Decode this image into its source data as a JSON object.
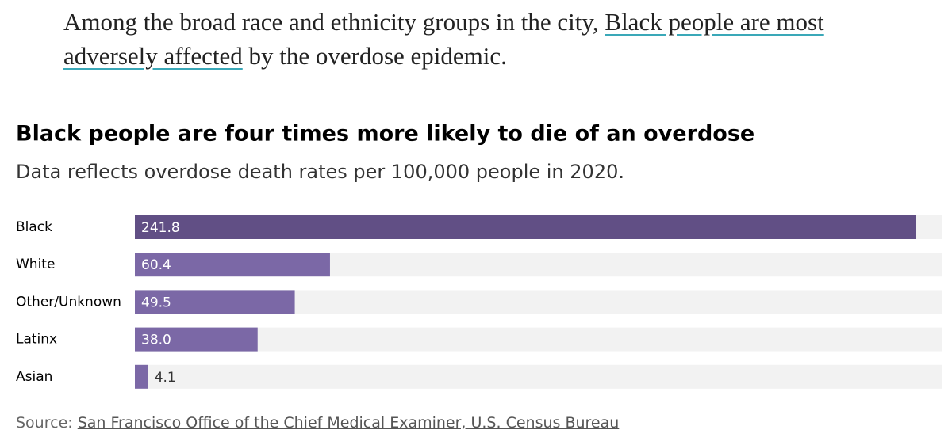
{
  "intro": {
    "before": "Among the broad race and ethnicity groups in the city,",
    "link": "Black people are most adversely affected",
    "after": "by the overdose epidemic."
  },
  "chart_data": {
    "type": "bar",
    "orientation": "horizontal",
    "title": "Black people are four times more likely to die of an overdose",
    "subtitle": "Data reflects overdose death rates per 100,000 people in 2020.",
    "categories": [
      "Black",
      "White",
      "Other/Unknown",
      "Latinx",
      "Asian"
    ],
    "values": [
      241.8,
      60.4,
      49.5,
      38.0,
      4.1
    ],
    "value_labels": [
      "241.8",
      "60.4",
      "49.5",
      "38.0",
      "4.1"
    ],
    "colors": [
      "#614f85",
      "#7b68a6",
      "#7b68a6",
      "#7b68a6",
      "#7b68a6"
    ],
    "xlim": [
      0,
      250
    ]
  },
  "source": {
    "label": "Source:",
    "text": "San Francisco Office of the Chief Medical Examiner, U.S. Census Bureau"
  }
}
